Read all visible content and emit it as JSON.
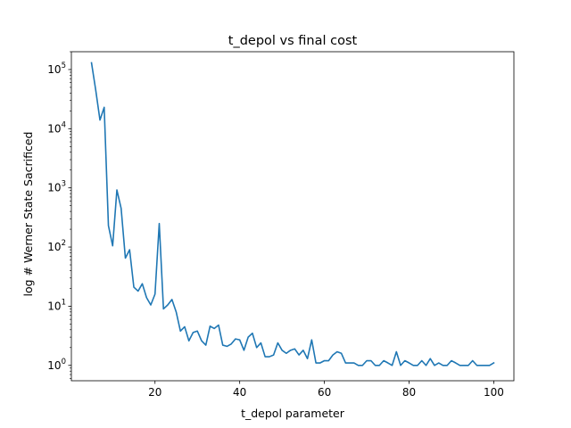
{
  "chart_data": {
    "type": "line",
    "title": "t_depol vs final cost",
    "xlabel": "t_depol parameter",
    "ylabel": "log # Werner State Sacrificed",
    "xscale": "linear",
    "yscale": "log",
    "xlim": [
      0.25,
      104.75
    ],
    "ylim": [
      0.55,
      200000
    ],
    "xticks": [
      {
        "value": 20,
        "label": "20"
      },
      {
        "value": 40,
        "label": "40"
      },
      {
        "value": 60,
        "label": "60"
      },
      {
        "value": 80,
        "label": "80"
      },
      {
        "value": 100,
        "label": "100"
      }
    ],
    "yticks": [
      {
        "value": 1,
        "base": "10",
        "exp": "0"
      },
      {
        "value": 10,
        "base": "10",
        "exp": "1"
      },
      {
        "value": 100,
        "base": "10",
        "exp": "2"
      },
      {
        "value": 1000,
        "base": "10",
        "exp": "3"
      },
      {
        "value": 10000,
        "base": "10",
        "exp": "4"
      },
      {
        "value": 100000,
        "base": "10",
        "exp": "5"
      }
    ],
    "grid": false,
    "legend": "none",
    "line_color": "#1f77b4",
    "series": [
      {
        "x": [
          5,
          6,
          7,
          8,
          9,
          10,
          11,
          12,
          13,
          14,
          15,
          16,
          17,
          18,
          19,
          20,
          21,
          22,
          23,
          24,
          25,
          26,
          27,
          28,
          29,
          30,
          31,
          32,
          33,
          34,
          35,
          36,
          37,
          38,
          39,
          40,
          41,
          42,
          43,
          44,
          45,
          46,
          47,
          48,
          49,
          50,
          51,
          52,
          53,
          54,
          55,
          56,
          57,
          58,
          59,
          60,
          61,
          62,
          63,
          64,
          65,
          66,
          67,
          68,
          69,
          70,
          71,
          72,
          73,
          74,
          75,
          76,
          77,
          78,
          79,
          80,
          81,
          82,
          83,
          84,
          85,
          86,
          87,
          88,
          89,
          90,
          91,
          92,
          93,
          94,
          95,
          96,
          97,
          98,
          99,
          100
        ],
        "values": [
          130000,
          45000,
          14000,
          23000,
          230,
          105,
          920,
          450,
          65,
          90,
          21,
          18,
          24,
          14,
          10.5,
          16,
          250,
          9,
          10.5,
          13,
          8,
          3.8,
          4.5,
          2.6,
          3.6,
          3.8,
          2.6,
          2.2,
          4.6,
          4.2,
          4.8,
          2.2,
          2.1,
          2.3,
          2.8,
          2.7,
          1.8,
          3.0,
          3.5,
          2.0,
          2.4,
          1.4,
          1.4,
          1.5,
          2.4,
          1.8,
          1.6,
          1.8,
          1.9,
          1.5,
          1.8,
          1.3,
          2.7,
          1.1,
          1.1,
          1.2,
          1.2,
          1.5,
          1.7,
          1.6,
          1.1,
          1.1,
          1.1,
          1.0,
          1.0,
          1.2,
          1.2,
          1.0,
          1.0,
          1.2,
          1.1,
          1.0,
          1.7,
          1.0,
          1.2,
          1.1,
          1.0,
          1.0,
          1.2,
          1.0,
          1.3,
          1.0,
          1.1,
          1.0,
          1.0,
          1.2,
          1.1,
          1.0,
          1.0,
          1.0,
          1.2,
          1.0,
          1.0,
          1.0,
          1.0,
          1.1
        ]
      }
    ]
  }
}
